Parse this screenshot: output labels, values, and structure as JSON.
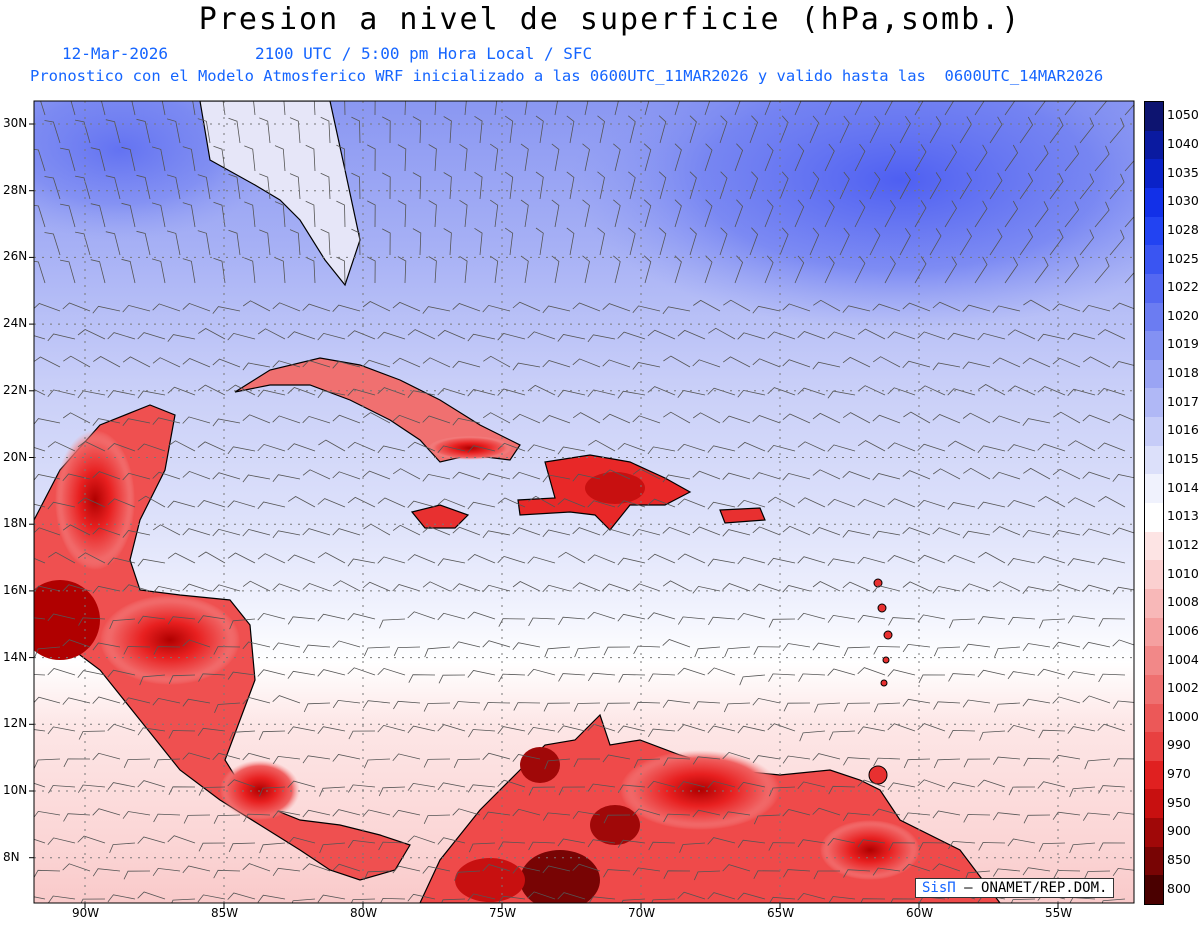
{
  "title": "Presion a nivel de superficie (hPa,somb.)",
  "date": "12-Mar-2026",
  "valid_time": "2100 UTC / 5:00 pm Hora Local / SFC",
  "forecast_info": "Pronostico con el Modelo Atmosferico WRF inicializado a las 0600UTC_11MAR2026 y valido hasta las  0600UTC_14MAR2026",
  "lat_labels": [
    "30N",
    "28N",
    "26N",
    "24N",
    "22N",
    "20N",
    "18N",
    "16N",
    "14N",
    "12N",
    "10N",
    "8N"
  ],
  "lon_labels": [
    "90W",
    "85W",
    "80W",
    "75W",
    "70W",
    "65W",
    "60W",
    "55W"
  ],
  "colorbar": {
    "labels": [
      "1050",
      "1040",
      "1035",
      "1030",
      "1028",
      "1025",
      "1022",
      "1020",
      "1019",
      "1018",
      "1017",
      "1016",
      "1015",
      "1014",
      "1013",
      "1012",
      "1010",
      "1008",
      "1006",
      "1004",
      "1002",
      "1000",
      "990",
      "970",
      "950",
      "900",
      "850",
      "800"
    ],
    "colors": [
      "#0d1470",
      "#0a1aa0",
      "#0a22c8",
      "#1230e8",
      "#2243f2",
      "#3a55f2",
      "#5468f2",
      "#6b7cf2",
      "#8391f3",
      "#9aa4f4",
      "#b0b8f6",
      "#c6ccf8",
      "#dce0fa",
      "#f0f2fd",
      "#ffffff",
      "#fde4e4",
      "#fbd0d0",
      "#f8b8b8",
      "#f5a0a0",
      "#f28888",
      "#ef7070",
      "#ec5858",
      "#e84040",
      "#e02020",
      "#c81010",
      "#a00808",
      "#780404",
      "#4a0000"
    ]
  },
  "credit": {
    "brand": "SisΠ",
    "org": "– ONAMET/REP.DOM."
  }
}
